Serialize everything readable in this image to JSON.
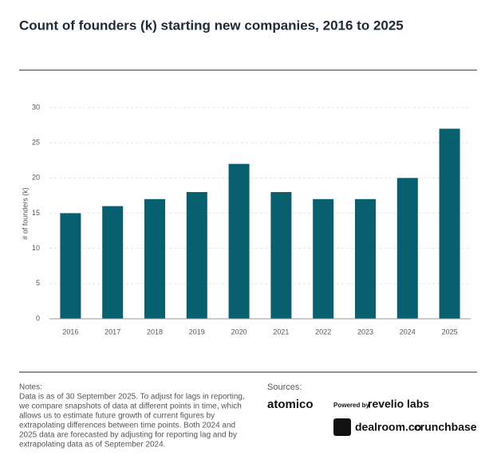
{
  "chart_data": {
    "type": "bar",
    "title": "Count of founders (k) starting new companies, 2016 to 2025",
    "y_label": "# of founders (k)",
    "categories": [
      "2016",
      "2017",
      "2018",
      "2019",
      "2020",
      "2021",
      "2022",
      "2023",
      "2024",
      "2025"
    ],
    "values": [
      15,
      16,
      17,
      18,
      22,
      18,
      17,
      17,
      20,
      27
    ],
    "color": "#085f6e",
    "ylim": [
      0,
      30
    ],
    "yticks": [
      0,
      5,
      10,
      15,
      20,
      25,
      30
    ],
    "grid": true
  },
  "notes": {
    "heading": "Notes:",
    "lines": [
      "Data is as of 30 September 2025. To adjust for lags in reporting,",
      "we compare snapshots of data at different points in time, which",
      "allows us to estimate future growth of current figures by",
      "extrapolating differences between time points. Both 2024 and",
      "2025 data are forecasted by adjusting for reporting lag and by",
      "extrapolating data as of September 2024."
    ]
  },
  "sources": {
    "heading": "Sources:",
    "atomico": "atomico",
    "powered_by": "Powered by",
    "revelio": "revelio labs",
    "dealroom": "dealroom.co",
    "crunchbase": "crunchbase"
  }
}
